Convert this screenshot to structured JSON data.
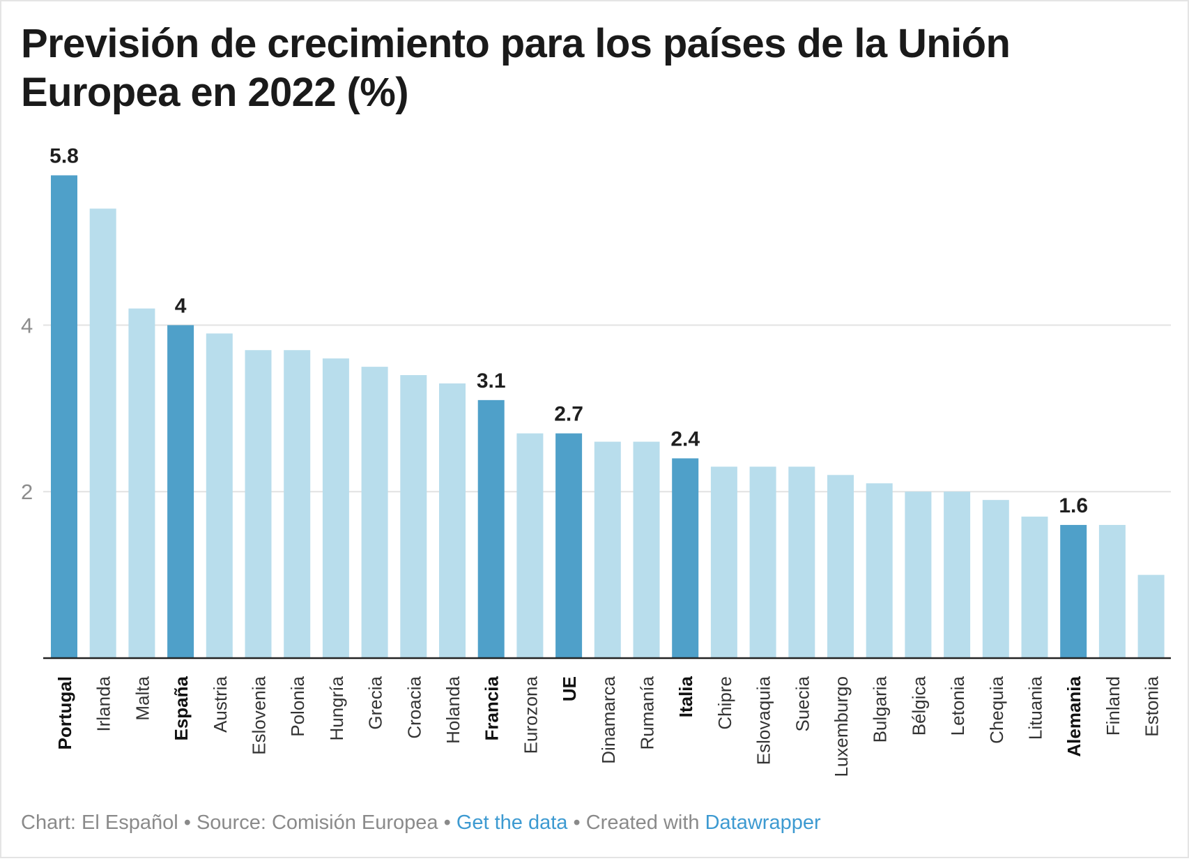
{
  "chart_data": {
    "type": "bar",
    "title": "Previsión de crecimiento para los países de la Unión Europea en 2022 (%)",
    "xlabel": "",
    "ylabel": "",
    "ylim": [
      0,
      6
    ],
    "yticks": [
      2,
      4
    ],
    "grid": true,
    "categories": [
      "Portugal",
      "Irlanda",
      "Malta",
      "España",
      "Austria",
      "Eslovenia",
      "Polonia",
      "Hungría",
      "Grecia",
      "Croacia",
      "Holanda",
      "Francia",
      "Eurozona",
      "UE",
      "Dinamarca",
      "Rumanía",
      "Italia",
      "Chipre",
      "Eslovaquia",
      "Suecia",
      "Luxemburgo",
      "Bulgaria",
      "Bélgica",
      "Letonia",
      "Chequia",
      "Lituania",
      "Alemania",
      "Finland",
      "Estonia"
    ],
    "values": [
      5.8,
      5.4,
      4.2,
      4.0,
      3.9,
      3.7,
      3.7,
      3.6,
      3.5,
      3.4,
      3.3,
      3.1,
      2.7,
      2.7,
      2.6,
      2.6,
      2.4,
      2.3,
      2.3,
      2.3,
      2.2,
      2.1,
      2.0,
      2.0,
      1.9,
      1.7,
      1.6,
      1.6,
      1.0
    ],
    "highlighted": [
      "Portugal",
      "España",
      "Francia",
      "UE",
      "Italia",
      "Alemania"
    ],
    "value_labels": {
      "Portugal": "5.8",
      "España": "4",
      "Francia": "3.1",
      "UE": "2.7",
      "Italia": "2.4",
      "Alemania": "1.6"
    },
    "colors": {
      "highlight": "#4fa0c9",
      "default": "#b8ddec",
      "grid": "#e2e2e2",
      "axis": "#222222",
      "tick_label": "#8c8c8c"
    }
  },
  "footer": {
    "chart_credit": "Chart: El Español",
    "separator": "•",
    "source": "Source: Comisión Europea",
    "get_data": "Get the data",
    "created_with": "Created with",
    "datawrapper": "Datawrapper"
  }
}
